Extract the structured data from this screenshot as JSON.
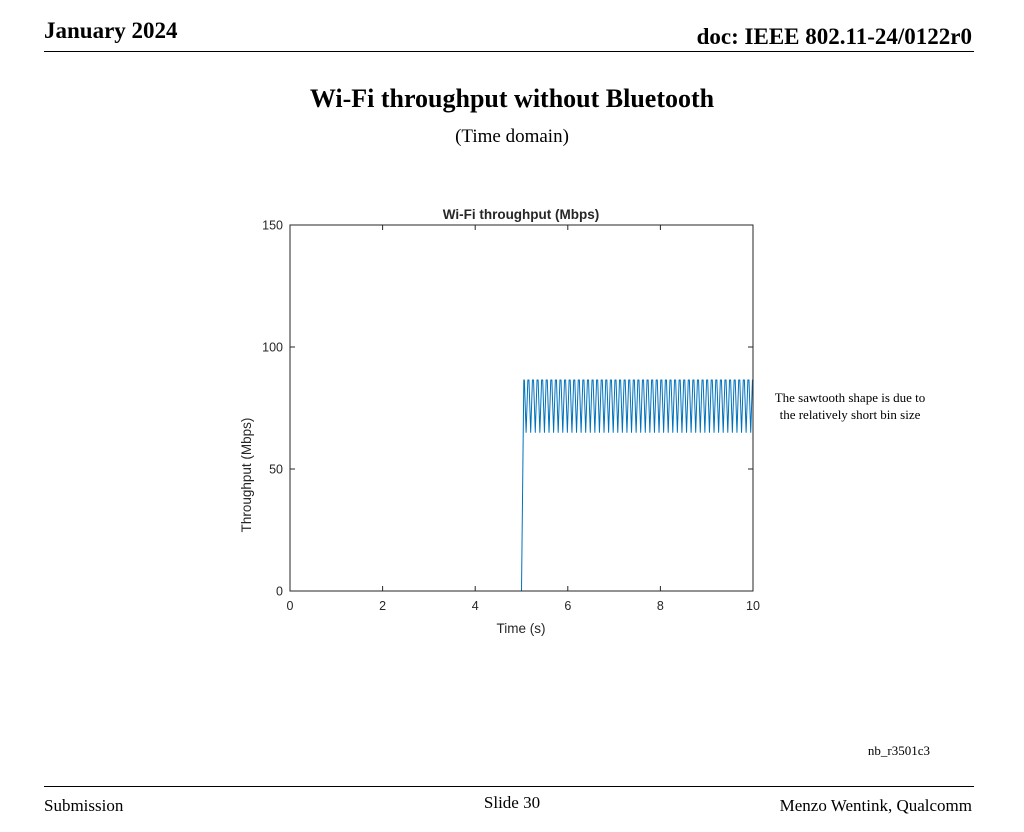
{
  "header": {
    "date": "January 2024",
    "doc": "doc: IEEE 802.11-24/0122r0"
  },
  "slide": {
    "title": "Wi-Fi throughput without Bluetooth",
    "subtitle": "(Time domain)",
    "annotation_line1": "The sawtooth shape is due to",
    "annotation_line2": "the relatively short bin size",
    "note": "nb_r3501c3"
  },
  "footer": {
    "left": "Submission",
    "center": "Slide 30",
    "right": "Menzo Wentink, Qualcomm"
  },
  "chart_data": {
    "type": "line",
    "title": "Wi-Fi throughput (Mbps)",
    "xlabel": "Time (s)",
    "ylabel": "Throughput (Mbps)",
    "xlim": [
      0,
      10
    ],
    "ylim": [
      0,
      150
    ],
    "xticks": [
      0,
      2,
      4,
      6,
      8,
      10
    ],
    "yticks": [
      0,
      50,
      100,
      150
    ],
    "grid": false,
    "line_color": "#0072BD",
    "series": [
      {
        "segments": [
          {
            "x_start": 0,
            "x_end": 5.0,
            "value": 0
          },
          {
            "x_start": 5.0,
            "x_end": 5.05,
            "value_from": 0,
            "value_to": 86.5
          },
          {
            "x_start": 5.05,
            "x_end": 10,
            "oscillation_min": 65,
            "oscillation_max": 86.5,
            "cycles": 50
          }
        ]
      }
    ]
  }
}
